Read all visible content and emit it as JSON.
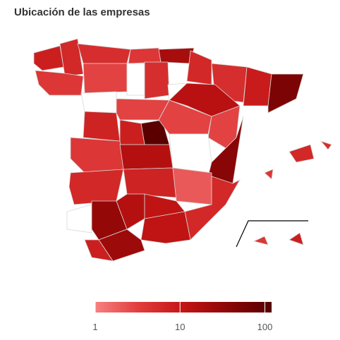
{
  "chart_data": {
    "type": "choropleth",
    "title": "Ubicación de las empresas",
    "scale": "log",
    "zlim": [
      1,
      120
    ],
    "zticks": [
      1,
      10,
      100
    ],
    "colors": [
      "#f88080",
      "#e03c3c",
      "#c41414",
      "#8c0606",
      "#560000"
    ],
    "missing_color": "#ffffff",
    "values": [
      8,
      6,
      4,
      5,
      4,
      20,
      6,
      3,
      null,
      null,
      5,
      null,
      5,
      14,
      9,
      50,
      7,
      3,
      110,
      8,
      3,
      3,
      4,
      15,
      null,
      40,
      6,
      7,
      2,
      6,
      null,
      30,
      15,
      12,
      12,
      25,
      8,
      6,
      5,
      4,
      4,
      8
    ]
  }
}
